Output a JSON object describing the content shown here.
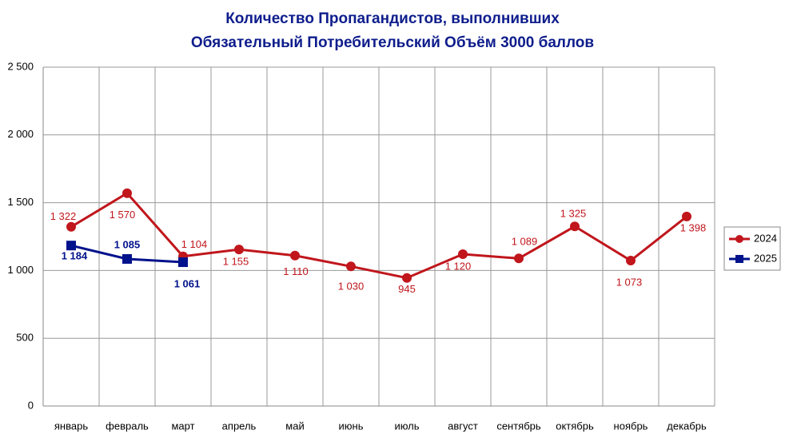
{
  "chart_data": {
    "type": "line",
    "title": [
      "Количество Пропагандистов, выполнивших",
      "Обязательный Потребительский Объём 3000 баллов"
    ],
    "categories": [
      "январь",
      "февраль",
      "март",
      "апрель",
      "май",
      "июнь",
      "июль",
      "август",
      "сентябрь",
      "октябрь",
      "ноябрь",
      "декабрь"
    ],
    "series": [
      {
        "name": "2024",
        "color": "#c0161c",
        "marker": "circle",
        "values": [
          1322,
          1570,
          1104,
          1155,
          1110,
          1030,
          945,
          1120,
          1089,
          1325,
          1073,
          1398
        ],
        "value_labels": [
          "1 322",
          "1 570",
          "1 104",
          "1 155",
          "1 110",
          "1 030",
          "945",
          "1 120",
          "1 089",
          "1 325",
          "1 073",
          "1 398"
        ]
      },
      {
        "name": "2025",
        "color": "#00128c",
        "marker": "square",
        "values": [
          1184,
          1085,
          1061,
          null,
          null,
          null,
          null,
          null,
          null,
          null,
          null,
          null
        ],
        "value_labels": [
          "1 184",
          "1 085",
          "1 061",
          null,
          null,
          null,
          null,
          null,
          null,
          null,
          null,
          null
        ]
      }
    ],
    "ylim": [
      0,
      2500
    ],
    "yticks": [
      0,
      500,
      {
        "value": 1000,
        "label": "1 000"
      },
      {
        "value": 1500,
        "label": "1 500"
      },
      {
        "value": 2000,
        "label": "2 000"
      },
      {
        "value": 2500,
        "label": "2 500"
      }
    ],
    "grid": true,
    "legend": "right"
  }
}
